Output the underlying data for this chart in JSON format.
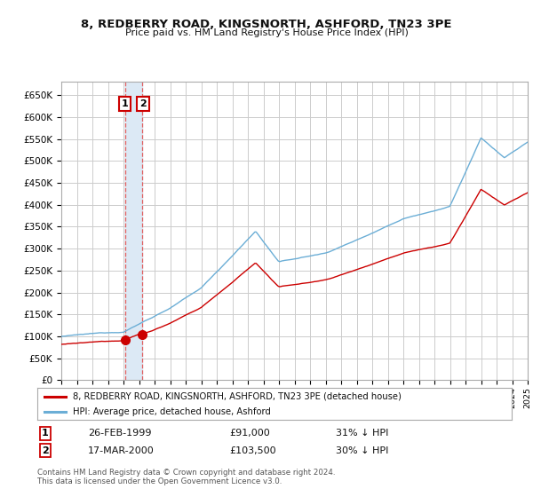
{
  "title": "8, REDBERRY ROAD, KINGSNORTH, ASHFORD, TN23 3PE",
  "subtitle": "Price paid vs. HM Land Registry's House Price Index (HPI)",
  "ylim": [
    0,
    680000
  ],
  "ytick_values": [
    0,
    50000,
    100000,
    150000,
    200000,
    250000,
    300000,
    350000,
    400000,
    450000,
    500000,
    550000,
    600000,
    650000
  ],
  "x_start_year": 1995,
  "x_end_year": 2025,
  "hpi_color": "#6baed6",
  "price_color": "#cc0000",
  "vline_color": "#e06060",
  "sale1_year": 1999.12,
  "sale1_price": 91000,
  "sale2_year": 2000.21,
  "sale2_price": 103500,
  "legend_label1": "8, REDBERRY ROAD, KINGSNORTH, ASHFORD, TN23 3PE (detached house)",
  "legend_label2": "HPI: Average price, detached house, Ashford",
  "table_row1": [
    "1",
    "26-FEB-1999",
    "£91,000",
    "31% ↓ HPI"
  ],
  "table_row2": [
    "2",
    "17-MAR-2000",
    "£103,500",
    "30% ↓ HPI"
  ],
  "footnote": "Contains HM Land Registry data © Crown copyright and database right 2024.\nThis data is licensed under the Open Government Licence v3.0.",
  "background_color": "#ffffff",
  "grid_color": "#cccccc",
  "plot_bg_color": "#ffffff",
  "span_color": "#dce9f5"
}
